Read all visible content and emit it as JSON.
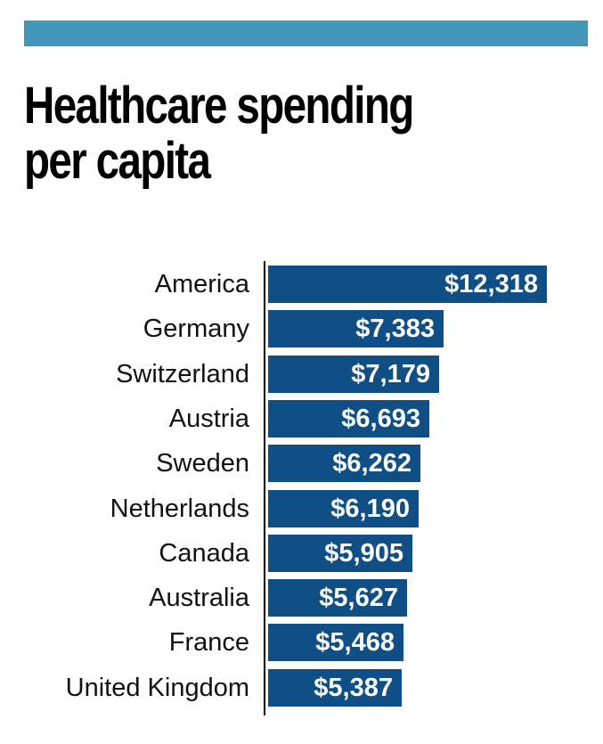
{
  "header": {
    "banner_color": "#4296b7"
  },
  "chart_data": {
    "type": "bar",
    "orientation": "horizontal",
    "title": "Healthcare spending per capita",
    "title_lines": [
      "Healthcare spending",
      "per capita"
    ],
    "xlabel": "",
    "ylabel": "",
    "bar_color": "#0f4f86",
    "categories": [
      "America",
      "Germany",
      "Switzerland",
      "Austria",
      "Sweden",
      "Netherlands",
      "Canada",
      "Australia",
      "France",
      "United Kingdom"
    ],
    "values": [
      12318,
      7383,
      7179,
      6693,
      6262,
      6190,
      5905,
      5627,
      5468,
      5387
    ],
    "value_labels": [
      "$12,318",
      "$7,383",
      "$7,179",
      "$6,693",
      "$6,262",
      "$6,190",
      "$5,905",
      "$5,627",
      "$5,468",
      "$5,387"
    ],
    "xlim": [
      0,
      12318
    ]
  }
}
